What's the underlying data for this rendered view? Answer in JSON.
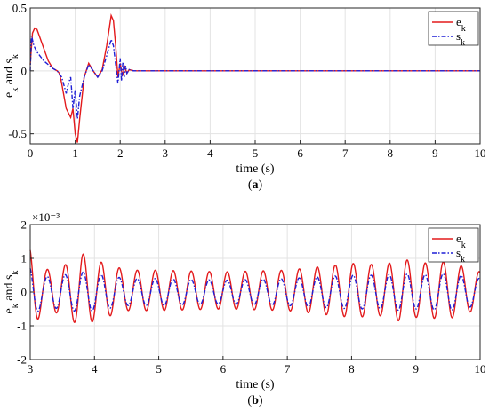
{
  "chart_data": [
    {
      "type": "line",
      "panel": "a",
      "caption": "(a)",
      "xlabel": "time (s)",
      "ylabel": "e_k and s_k",
      "xlim": [
        0,
        10
      ],
      "ylim": [
        -0.58,
        0.5
      ],
      "xticks": [
        0,
        1,
        2,
        3,
        4,
        5,
        6,
        7,
        8,
        9,
        10
      ],
      "yticks": [
        -0.5,
        0,
        0.5
      ],
      "ytick_labels": [
        "-0.5",
        "0",
        "0.5"
      ],
      "grid": true,
      "legend_placement": "top-right",
      "series": [
        {
          "name": "e_k",
          "color": "#e31a1c",
          "style": "solid",
          "x": [
            0,
            0.05,
            0.1,
            0.15,
            0.2,
            0.3,
            0.4,
            0.5,
            0.6,
            0.65,
            0.7,
            0.8,
            0.9,
            0.95,
            1.0,
            1.05,
            1.1,
            1.2,
            1.3,
            1.4,
            1.5,
            1.6,
            1.7,
            1.8,
            1.85,
            1.9,
            1.95,
            2.0,
            2.05,
            2.1,
            2.15,
            2.2,
            2.3,
            2.5,
            3,
            4,
            5,
            6,
            7,
            8,
            9,
            10
          ],
          "y": [
            0.05,
            0.3,
            0.34,
            0.33,
            0.28,
            0.18,
            0.08,
            0.02,
            0.0,
            -0.02,
            -0.1,
            -0.3,
            -0.37,
            -0.3,
            -0.5,
            -0.57,
            -0.38,
            -0.05,
            0.06,
            0.0,
            -0.05,
            0.01,
            0.2,
            0.44,
            0.4,
            0.2,
            -0.05,
            0.06,
            -0.04,
            0.03,
            -0.02,
            0.01,
            0.0,
            0.0,
            0.0,
            0.0,
            0.0,
            0.0,
            0.0,
            0.0,
            0.0,
            0.0
          ]
        },
        {
          "name": "s_k",
          "color": "#1f1fd6",
          "style": "dashdot",
          "x": [
            0,
            0.03,
            0.08,
            0.15,
            0.3,
            0.5,
            0.6,
            0.7,
            0.8,
            0.85,
            0.9,
            0.95,
            1.0,
            1.05,
            1.1,
            1.2,
            1.3,
            1.4,
            1.5,
            1.6,
            1.7,
            1.8,
            1.85,
            1.9,
            1.95,
            2.0,
            2.03,
            2.06,
            2.09,
            2.12,
            2.15,
            2.2,
            2.3,
            2.5,
            3,
            4,
            5,
            6,
            7,
            8,
            9,
            10
          ],
          "y": [
            0.0,
            0.28,
            0.2,
            0.15,
            0.08,
            0.02,
            0.0,
            -0.05,
            -0.18,
            -0.1,
            -0.05,
            -0.3,
            -0.15,
            -0.38,
            -0.2,
            -0.05,
            0.05,
            0.0,
            -0.05,
            0.0,
            0.12,
            0.25,
            0.2,
            0.05,
            -0.1,
            0.1,
            -0.08,
            0.07,
            -0.05,
            0.04,
            -0.02,
            0.01,
            0.0,
            0.0,
            0.0,
            0.0,
            0.0,
            0.0,
            0.0,
            0.0,
            0.0,
            0.0
          ]
        }
      ]
    },
    {
      "type": "line",
      "panel": "b",
      "caption": "(b)",
      "xlabel": "time (s)",
      "ylabel": "e_k and s_k",
      "scale_note": "×10⁻³",
      "xlim": [
        3,
        10
      ],
      "ylim": [
        -2,
        2
      ],
      "xticks": [
        3,
        4,
        5,
        6,
        7,
        8,
        9,
        10
      ],
      "yticks": [
        -2,
        -1,
        0,
        1,
        2
      ],
      "ytick_labels": [
        "-2",
        "-1",
        "0",
        "1",
        "2"
      ],
      "grid": true,
      "legend_placement": "top-right",
      "series": [
        {
          "name": "e_k",
          "color": "#e31a1c",
          "style": "solid",
          "x0": 3,
          "period": 0.28,
          "amplitude_envelope": {
            "x": [
              3,
              3.2,
              3.5,
              3.8,
              4,
              4.5,
              5,
              6,
              7,
              7.5,
              8,
              8.5,
              8.8,
              9,
              9.5,
              10
            ],
            "y": [
              1.25,
              0.6,
              0.7,
              1.1,
              0.9,
              0.6,
              0.6,
              0.55,
              0.6,
              0.7,
              0.8,
              0.75,
              0.95,
              0.8,
              0.85,
              0.55
            ]
          },
          "offset": 0.05,
          "phase": 0.3
        },
        {
          "name": "s_k",
          "color": "#1f1fd6",
          "style": "dashdot",
          "x0": 3,
          "period": 0.28,
          "amplitude_envelope": {
            "x": [
              3,
              3.2,
              3.5,
              3.8,
              4,
              4.5,
              5,
              6,
              7,
              7.5,
              8,
              8.5,
              8.8,
              9,
              9.5,
              10
            ],
            "y": [
              0.75,
              0.45,
              0.5,
              0.6,
              0.55,
              0.4,
              0.4,
              0.35,
              0.4,
              0.45,
              0.5,
              0.5,
              0.55,
              0.5,
              0.55,
              0.4
            ]
          },
          "offset": 0.0,
          "phase": 0.35
        }
      ]
    }
  ]
}
